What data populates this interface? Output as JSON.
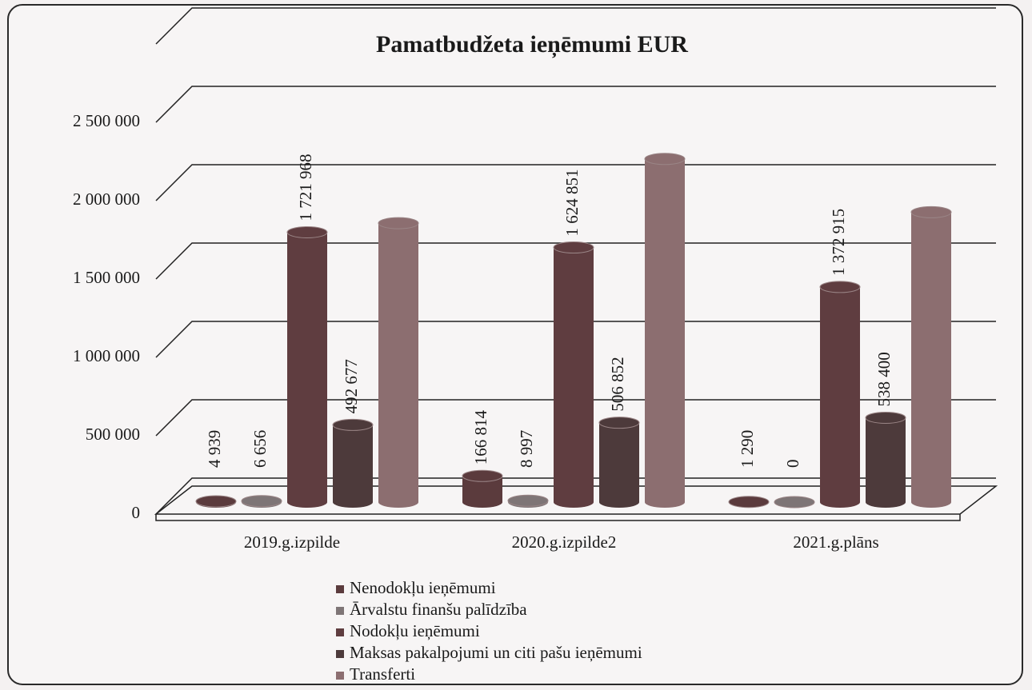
{
  "chart_data": {
    "type": "bar",
    "title": "Pamatbudžeta ieņēmumi EUR",
    "categories": [
      "2019.g.izpilde",
      "2020.g.izpilde2",
      "2021.g.plāns"
    ],
    "series": [
      {
        "name": "Nenodokļu ieņēmumi",
        "color": "#5b3b3d",
        "values": [
          4939,
          166814,
          1290
        ],
        "value_labels": [
          "4 939",
          "166 814",
          "1 290"
        ]
      },
      {
        "name": "Ārvalstu finanšu palīdzība",
        "color": "#7e7576",
        "values": [
          6656,
          8997,
          0
        ],
        "value_labels": [
          "6 656",
          "8 997",
          "0"
        ]
      },
      {
        "name": "Nodokļu ieņēmumi",
        "color": "#5f3d40",
        "values": [
          1721968,
          1624851,
          1372915
        ],
        "value_labels": [
          "1 721 968",
          "1 624 851",
          "1 372 915"
        ]
      },
      {
        "name": "Maksas pakalpojumi un citi pašu ieņēmumi",
        "color": "#4d3a3b",
        "values": [
          492677,
          506852,
          538400
        ],
        "value_labels": [
          "492 677",
          "506 852",
          "538 400"
        ]
      },
      {
        "name": "Transferti",
        "color": "#8c6e70",
        "values": [
          1780000,
          2190000,
          1850000
        ]
      }
    ],
    "ylim": [
      0,
      3000000
    ],
    "yticks": [
      0,
      {
        "value": 500000,
        "label": "500 000"
      },
      {
        "value": 1000000,
        "label": "1 000 000"
      },
      {
        "value": 1500000,
        "label": "1 500 000"
      },
      {
        "value": 2000000,
        "label": "2 000 000"
      },
      {
        "value": 2500000,
        "label": "2 500 000"
      }
    ],
    "grid": true
  }
}
